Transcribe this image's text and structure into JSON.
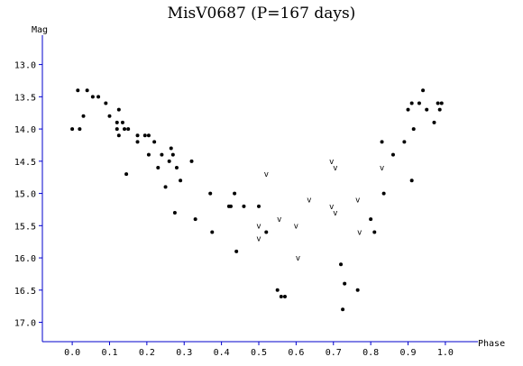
{
  "colors": {
    "axis": "#0000cc",
    "marker": "#000000",
    "background": "#ffffff"
  },
  "chart_data": {
    "type": "scatter",
    "title": "MisV0687 (P=167 days)",
    "xlabel": "Phase",
    "ylabel": "Mag",
    "xlim": [
      -0.08,
      1.08
    ],
    "ylim": [
      17.3,
      12.6
    ],
    "y_inverted": true,
    "grid": false,
    "xticks": [
      "0.0",
      "0.1",
      "0.2",
      "0.3",
      "0.4",
      "0.5",
      "0.6",
      "0.7",
      "0.8",
      "0.9",
      "1.0"
    ],
    "yticks": [
      "13.0",
      "13.5",
      "14.0",
      "14.5",
      "15.0",
      "15.5",
      "16.0",
      "16.5",
      "17.0"
    ],
    "series": [
      {
        "marker": "dot",
        "points": [
          [
            0.0,
            14.0
          ],
          [
            0.015,
            13.4
          ],
          [
            0.02,
            14.0
          ],
          [
            0.03,
            13.8
          ],
          [
            0.04,
            13.4
          ],
          [
            0.055,
            13.5
          ],
          [
            0.07,
            13.5
          ],
          [
            0.09,
            13.6
          ],
          [
            0.1,
            13.8
          ],
          [
            0.12,
            13.9
          ],
          [
            0.125,
            13.7
          ],
          [
            0.12,
            14.0
          ],
          [
            0.125,
            14.1
          ],
          [
            0.135,
            13.9
          ],
          [
            0.14,
            14.0
          ],
          [
            0.145,
            14.7
          ],
          [
            0.15,
            14.0
          ],
          [
            0.175,
            14.1
          ],
          [
            0.175,
            14.2
          ],
          [
            0.195,
            14.1
          ],
          [
            0.205,
            14.1
          ],
          [
            0.205,
            14.4
          ],
          [
            0.22,
            14.2
          ],
          [
            0.23,
            14.6
          ],
          [
            0.24,
            14.4
          ],
          [
            0.25,
            14.9
          ],
          [
            0.26,
            14.5
          ],
          [
            0.265,
            14.3
          ],
          [
            0.27,
            14.4
          ],
          [
            0.275,
            15.3
          ],
          [
            0.28,
            14.6
          ],
          [
            0.29,
            14.8
          ],
          [
            0.32,
            14.5
          ],
          [
            0.33,
            15.4
          ],
          [
            0.37,
            15.0
          ],
          [
            0.375,
            15.6
          ],
          [
            0.42,
            15.2
          ],
          [
            0.425,
            15.2
          ],
          [
            0.435,
            15.0
          ],
          [
            0.44,
            15.9
          ],
          [
            0.46,
            15.2
          ],
          [
            0.5,
            15.2
          ],
          [
            0.52,
            15.6
          ],
          [
            0.55,
            16.5
          ],
          [
            0.56,
            16.6
          ],
          [
            0.57,
            16.6
          ],
          [
            0.72,
            16.1
          ],
          [
            0.725,
            16.8
          ],
          [
            0.73,
            16.4
          ],
          [
            0.765,
            16.5
          ],
          [
            0.8,
            15.4
          ],
          [
            0.81,
            15.6
          ],
          [
            0.83,
            14.2
          ],
          [
            0.835,
            15.0
          ],
          [
            0.86,
            14.4
          ],
          [
            0.89,
            14.2
          ],
          [
            0.9,
            13.7
          ],
          [
            0.91,
            13.6
          ],
          [
            0.91,
            14.8
          ],
          [
            0.915,
            14.0
          ],
          [
            0.93,
            13.6
          ],
          [
            0.94,
            13.4
          ],
          [
            0.95,
            13.7
          ],
          [
            0.97,
            13.9
          ],
          [
            0.98,
            13.6
          ],
          [
            0.985,
            13.7
          ],
          [
            0.99,
            13.6
          ]
        ]
      },
      {
        "marker": "v",
        "points": [
          [
            0.52,
            14.7
          ],
          [
            0.5,
            15.5
          ],
          [
            0.5,
            15.7
          ],
          [
            0.555,
            15.4
          ],
          [
            0.6,
            15.5
          ],
          [
            0.605,
            16.0
          ],
          [
            0.635,
            15.1
          ],
          [
            0.695,
            14.5
          ],
          [
            0.705,
            14.6
          ],
          [
            0.695,
            15.2
          ],
          [
            0.705,
            15.3
          ],
          [
            0.765,
            15.1
          ],
          [
            0.77,
            15.6
          ],
          [
            0.83,
            14.6
          ]
        ]
      }
    ]
  }
}
